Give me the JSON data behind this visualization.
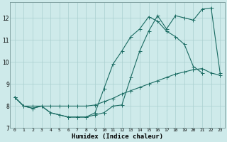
{
  "xlabel": "Humidex (Indice chaleur)",
  "bg_color": "#ceeaea",
  "grid_color": "#aacfcf",
  "line_color": "#1a6b62",
  "ylim": [
    7.0,
    12.7
  ],
  "xlim": [
    -0.5,
    23.5
  ],
  "yticks": [
    7,
    8,
    9,
    10,
    11,
    12
  ],
  "series1_y": [
    8.4,
    8.0,
    7.9,
    8.0,
    7.7,
    7.6,
    7.5,
    7.5,
    7.5,
    7.6,
    7.7,
    8.0,
    8.05,
    9.3,
    10.5,
    11.4,
    12.1,
    11.5,
    12.1,
    12.0,
    11.9,
    12.4,
    12.45,
    9.5
  ],
  "series2_y": [
    8.4,
    8.0,
    7.9,
    8.0,
    7.7,
    7.6,
    7.5,
    7.5,
    7.5,
    7.7,
    8.8,
    9.9,
    10.5,
    11.15,
    11.5,
    12.05,
    11.85,
    11.4,
    11.15,
    10.8,
    9.8,
    9.5,
    null,
    null
  ],
  "series3_y": [
    8.4,
    8.0,
    8.0,
    8.0,
    8.0,
    8.0,
    8.0,
    8.0,
    8.0,
    8.05,
    8.2,
    8.35,
    8.55,
    8.7,
    8.85,
    9.0,
    9.15,
    9.3,
    9.45,
    9.55,
    9.65,
    9.7,
    9.5,
    9.4
  ]
}
